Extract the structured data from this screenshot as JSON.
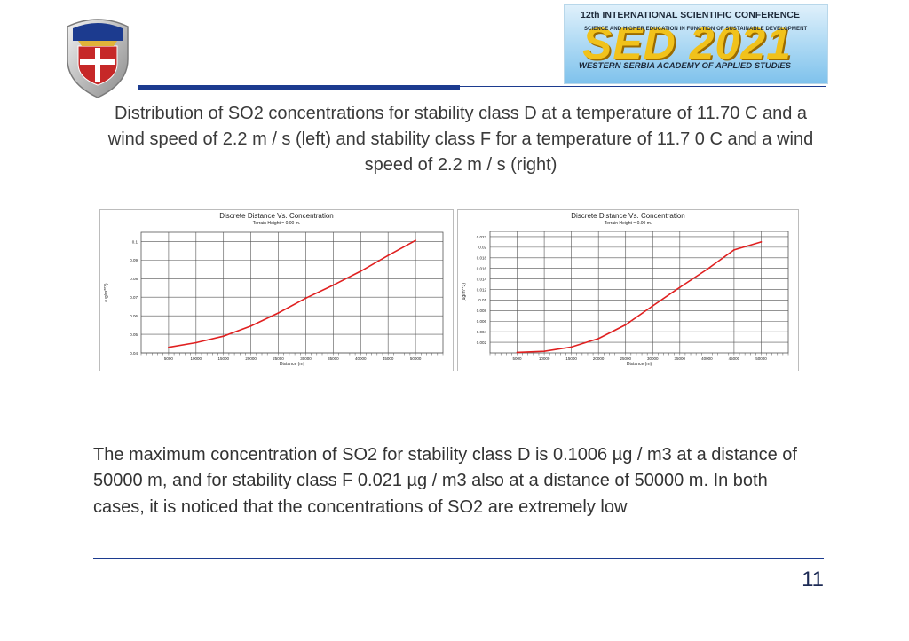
{
  "header": {
    "conference": {
      "line1": "12th INTERNATIONAL SCIENTIFIC CONFERENCE",
      "line2": "SCIENCE AND HIGHER EDUCATION IN FUNCTION OF SUSTAINABLE DEVELOPMENT",
      "big": "SED 2021",
      "line3": "WESTERN SERBIA ACADEMY OF APPLIED STUDIES"
    }
  },
  "title": "Distribution of SO2 concentrations for stability class D at a temperature of 11.70 C and a wind speed of 2.2 m / s (left) and stability class F for a temperature of 11.7 0 C and a wind speed of 2.2 m / s (right)",
  "colors": {
    "accent": "#1c3b8f",
    "line": "#e02020"
  },
  "chart_data": [
    {
      "type": "line",
      "title": "Discrete Distance Vs. Concentration",
      "subtitle": "Terrain Height = 0.00 m.",
      "xlabel": "Distance (m)",
      "ylabel": "(ug/m**3)",
      "xlim": [
        0,
        55000
      ],
      "ylim": [
        0.04,
        0.105
      ],
      "x_ticks": [
        5000,
        10000,
        15000,
        20000,
        25000,
        30000,
        35000,
        40000,
        45000,
        50000
      ],
      "y_ticks": [
        0.04,
        0.05,
        0.06,
        0.07,
        0.08,
        0.09,
        0.1
      ],
      "y_tick_labels": [
        "0.04",
        "0.05",
        "0.06",
        "0.07",
        "0.08",
        "0.09",
        "0.1"
      ],
      "grid": true,
      "series": [
        {
          "x": [
            5000,
            10000,
            15000,
            20000,
            25000,
            30000,
            35000,
            40000,
            45000,
            50000
          ],
          "y": [
            0.043,
            0.0455,
            0.049,
            0.0545,
            0.0615,
            0.0695,
            0.0765,
            0.084,
            0.0925,
            0.1006
          ]
        }
      ]
    },
    {
      "type": "line",
      "title": "Discrete Distance Vs. Concentration",
      "subtitle": "Terrain Height = 0.00 m.",
      "xlabel": "Distance (m)",
      "ylabel": "(ug/m**3)",
      "xlim": [
        0,
        55000
      ],
      "ylim": [
        0,
        0.023
      ],
      "x_ticks": [
        5000,
        10000,
        15000,
        20000,
        25000,
        30000,
        35000,
        40000,
        45000,
        50000
      ],
      "y_ticks": [
        0.002,
        0.004,
        0.006,
        0.008,
        0.01,
        0.012,
        0.014,
        0.016,
        0.018,
        0.02,
        0.022
      ],
      "y_tick_labels": [
        "0.002",
        "0.004",
        "0.006",
        "0.008",
        "0.01",
        "0.012",
        "0.014",
        "0.016",
        "0.018",
        "0.02",
        "0.022"
      ],
      "grid": true,
      "series": [
        {
          "x": [
            5000,
            10000,
            15000,
            20000,
            25000,
            30000,
            35000,
            40000,
            45000,
            50000
          ],
          "y": [
            0.0001,
            0.0003,
            0.0011,
            0.0027,
            0.0053,
            0.0089,
            0.0124,
            0.0158,
            0.0195,
            0.021
          ]
        }
      ]
    }
  ],
  "body_text": "The maximum concentration of SO2 for stability class D is 0.1006 µg / m3 at a distance of 50000 m, and for stability class F 0.021 µg / m3 also at a distance of 50000 m. In both cases, it is noticed that the concentrations of SO2 are extremely low",
  "page_number": "11"
}
